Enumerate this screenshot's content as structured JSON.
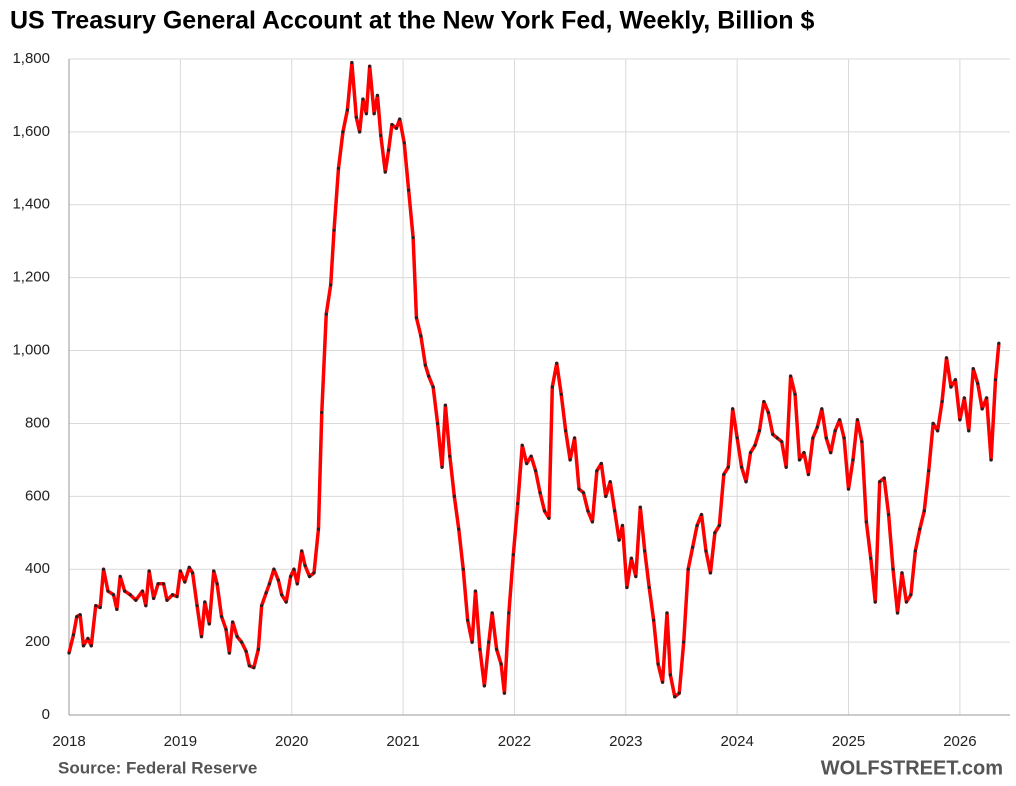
{
  "chart_data": {
    "type": "line",
    "title": "US Treasury General Account at the New York Fed, Weekly, Billion $",
    "source": "Source: Federal Reserve",
    "brand": "WOLFSTREET.com",
    "x": [
      2018.0,
      2018.04,
      2018.07,
      2018.1,
      2018.13,
      2018.17,
      2018.2,
      2018.24,
      2018.28,
      2018.31,
      2018.35,
      2018.4,
      2018.43,
      2018.46,
      2018.5,
      2018.55,
      2018.6,
      2018.66,
      2018.69,
      2018.72,
      2018.76,
      2018.8,
      2018.85,
      2018.88,
      2018.93,
      2018.97,
      2019.0,
      2019.04,
      2019.08,
      2019.11,
      2019.15,
      2019.19,
      2019.22,
      2019.26,
      2019.3,
      2019.33,
      2019.37,
      2019.41,
      2019.44,
      2019.47,
      2019.51,
      2019.55,
      2019.59,
      2019.62,
      2019.66,
      2019.7,
      2019.73,
      2019.77,
      2019.8,
      2019.84,
      2019.88,
      2019.91,
      2019.95,
      2019.99,
      2020.02,
      2020.05,
      2020.09,
      2020.12,
      2020.16,
      2020.2,
      2020.24,
      2020.27,
      2020.31,
      2020.35,
      2020.38,
      2020.42,
      2020.46,
      2020.5,
      2020.54,
      2020.58,
      2020.61,
      2020.64,
      2020.67,
      2020.7,
      2020.74,
      2020.77,
      2020.8,
      2020.84,
      2020.87,
      2020.9,
      2020.94,
      2020.97,
      2021.01,
      2021.05,
      2021.09,
      2021.12,
      2021.16,
      2021.2,
      2021.23,
      2021.27,
      2021.31,
      2021.35,
      2021.38,
      2021.42,
      2021.46,
      2021.5,
      2021.54,
      2021.58,
      2021.62,
      2021.65,
      2021.69,
      2021.73,
      2021.77,
      2021.8,
      2021.84,
      2021.88,
      2021.91,
      2021.95,
      2021.99,
      2022.03,
      2022.07,
      2022.11,
      2022.15,
      2022.19,
      2022.23,
      2022.27,
      2022.31,
      2022.34,
      2022.38,
      2022.42,
      2022.46,
      2022.5,
      2022.54,
      2022.58,
      2022.62,
      2022.66,
      2022.7,
      2022.74,
      2022.78,
      2022.82,
      2022.86,
      2022.9,
      2022.94,
      2022.97,
      2023.01,
      2023.05,
      2023.09,
      2023.13,
      2023.17,
      2023.21,
      2023.25,
      2023.29,
      2023.33,
      2023.37,
      2023.4,
      2023.44,
      2023.48,
      2023.52,
      2023.56,
      2023.6,
      2023.64,
      2023.68,
      2023.72,
      2023.76,
      2023.8,
      2023.84,
      2023.88,
      2023.92,
      2023.96,
      2024.0,
      2024.04,
      2024.08,
      2024.12,
      2024.16,
      2024.2,
      2024.24,
      2024.28,
      2024.32,
      2024.36,
      2024.4,
      2024.44,
      2024.48,
      2024.52,
      2024.56,
      2024.6,
      2024.64,
      2024.68,
      2024.72,
      2024.76,
      2024.8,
      2024.84,
      2024.88,
      2024.92,
      2024.96,
      2025.0,
      2025.04,
      2025.08,
      2025.12,
      2025.16,
      2025.2,
      2025.24,
      2025.28,
      2025.32,
      2025.36,
      2025.4,
      2025.44,
      2025.48,
      2025.52,
      2025.56,
      2025.6,
      2025.64,
      2025.68,
      2025.72,
      2025.76,
      2025.8,
      2025.84,
      2025.88,
      2025.92,
      2025.96,
      2026.0,
      2026.04,
      2026.08,
      2026.12,
      2026.16,
      2026.2,
      2026.24,
      2026.28,
      2026.32,
      2026.35
    ],
    "series": [
      {
        "color": "#ff0000",
        "values": [
          170,
          220,
          270,
          275,
          190,
          210,
          190,
          300,
          295,
          400,
          340,
          330,
          290,
          380,
          340,
          330,
          315,
          340,
          300,
          395,
          320,
          360,
          360,
          315,
          330,
          325,
          395,
          365,
          405,
          390,
          300,
          215,
          310,
          250,
          395,
          360,
          270,
          235,
          170,
          255,
          215,
          200,
          175,
          135,
          130,
          180,
          300,
          335,
          360,
          400,
          370,
          330,
          310,
          380,
          400,
          360,
          450,
          410,
          380,
          390,
          510,
          830,
          1100,
          1180,
          1330,
          1500,
          1600,
          1660,
          1790,
          1640,
          1600,
          1690,
          1650,
          1780,
          1650,
          1700,
          1590,
          1490,
          1550,
          1620,
          1610,
          1635,
          1570,
          1440,
          1310,
          1090,
          1040,
          960,
          930,
          900,
          800,
          680,
          850,
          710,
          600,
          510,
          400,
          260,
          200,
          340,
          180,
          80,
          200,
          280,
          180,
          140,
          60,
          280,
          440,
          580,
          740,
          690,
          710,
          670,
          610,
          560,
          540,
          900,
          965,
          880,
          780,
          700,
          760,
          620,
          610,
          560,
          530,
          670,
          690,
          600,
          640,
          560,
          480,
          520,
          350,
          430,
          380,
          570,
          450,
          350,
          260,
          140,
          90,
          280,
          110,
          50,
          60,
          200,
          400,
          460,
          520,
          550,
          450,
          390,
          500,
          520,
          660,
          680,
          840,
          760,
          680,
          640,
          720,
          740,
          780,
          860,
          830,
          770,
          760,
          750,
          680,
          930,
          880,
          700,
          720,
          660,
          760,
          790,
          840,
          760,
          720,
          780,
          810,
          760,
          620,
          700,
          810,
          750,
          530,
          430,
          310,
          640,
          650,
          550,
          400,
          280,
          390,
          310,
          330,
          450,
          510,
          560,
          670,
          800,
          780,
          860,
          980,
          900,
          920,
          810,
          870,
          780,
          950,
          910,
          840,
          870,
          700,
          920,
          1020
        ]
      }
    ],
    "xlim": [
      2018,
      2026.45
    ],
    "xticks": [
      2018,
      2019,
      2020,
      2021,
      2022,
      2023,
      2024,
      2025,
      2026
    ],
    "ylim": [
      0,
      1800
    ],
    "yticks": [
      0,
      200,
      400,
      600,
      800,
      {
        "value": 1000,
        "label": "1,000"
      },
      {
        "value": 1200,
        "label": "1,200"
      },
      {
        "value": 1400,
        "label": "1,400"
      },
      {
        "value": 1600,
        "label": "1,600"
      },
      {
        "value": 1800,
        "label": "1,800"
      }
    ],
    "grid": true,
    "markers": true
  }
}
